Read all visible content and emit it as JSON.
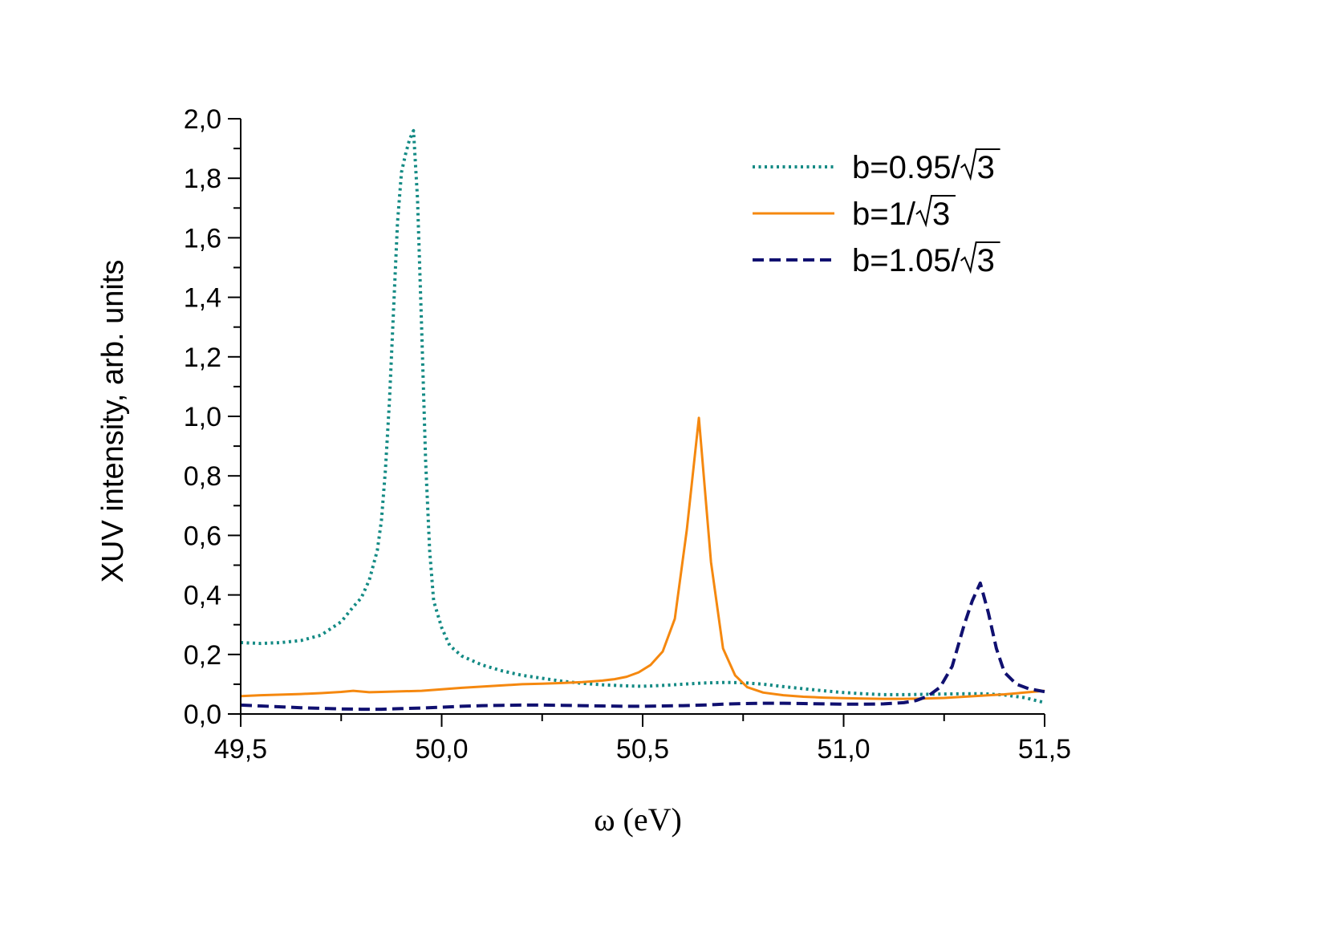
{
  "chart_data": {
    "type": "line",
    "title": "",
    "xlabel": "ω (eV)",
    "ylabel": "XUV intensity, arb. units",
    "xlim": [
      49.5,
      51.5
    ],
    "ylim": [
      0.0,
      2.0
    ],
    "xticks": [
      49.5,
      50.0,
      50.5,
      51.0,
      51.5
    ],
    "xtick_labels": [
      "49,5",
      "50,0",
      "50,5",
      "51,0",
      "51,5"
    ],
    "yticks": [
      0.0,
      0.2,
      0.4,
      0.6,
      0.8,
      1.0,
      1.2,
      1.4,
      1.6,
      1.8,
      2.0
    ],
    "ytick_labels": [
      "0,0",
      "0,2",
      "0,4",
      "0,6",
      "0,8",
      "1,0",
      "1,2",
      "1,4",
      "1,6",
      "1,8",
      "2,0"
    ],
    "grid": false,
    "legend_position": "top-right",
    "series": [
      {
        "name": "b=0.95/√3",
        "label_prefix": "b=0.95/",
        "color": "#138a84",
        "style": "dotted",
        "x": [
          49.5,
          49.55,
          49.6,
          49.65,
          49.7,
          49.75,
          49.78,
          49.8,
          49.82,
          49.84,
          49.85,
          49.86,
          49.87,
          49.88,
          49.89,
          49.9,
          49.91,
          49.92,
          49.93,
          49.94,
          49.95,
          49.96,
          49.97,
          49.98,
          50.0,
          50.02,
          50.05,
          50.1,
          50.15,
          50.2,
          50.25,
          50.3,
          50.35,
          50.4,
          50.45,
          50.5,
          50.55,
          50.6,
          50.65,
          50.7,
          50.75,
          50.8,
          50.85,
          50.9,
          50.95,
          51.0,
          51.05,
          51.1,
          51.15,
          51.2,
          51.25,
          51.3,
          51.35,
          51.4,
          51.45,
          51.5
        ],
        "y": [
          0.24,
          0.237,
          0.24,
          0.247,
          0.265,
          0.31,
          0.36,
          0.39,
          0.45,
          0.55,
          0.65,
          0.82,
          1.05,
          1.35,
          1.65,
          1.82,
          1.88,
          1.93,
          1.96,
          1.73,
          1.3,
          0.85,
          0.55,
          0.38,
          0.29,
          0.23,
          0.195,
          0.165,
          0.145,
          0.13,
          0.12,
          0.11,
          0.103,
          0.098,
          0.095,
          0.093,
          0.096,
          0.1,
          0.104,
          0.106,
          0.105,
          0.1,
          0.092,
          0.085,
          0.078,
          0.072,
          0.068,
          0.065,
          0.065,
          0.066,
          0.067,
          0.068,
          0.068,
          0.064,
          0.055,
          0.038
        ]
      },
      {
        "name": "b=1/√3",
        "label_prefix": "b=1/",
        "color": "#f5880f",
        "style": "solid",
        "x": [
          49.5,
          49.55,
          49.6,
          49.65,
          49.7,
          49.75,
          49.78,
          49.82,
          49.85,
          49.9,
          49.95,
          50.0,
          50.05,
          50.1,
          50.15,
          50.2,
          50.25,
          50.3,
          50.35,
          50.4,
          50.43,
          50.46,
          50.49,
          50.52,
          50.55,
          50.58,
          50.61,
          50.64,
          50.67,
          50.7,
          50.73,
          50.76,
          50.8,
          50.85,
          50.9,
          50.95,
          51.0,
          51.05,
          51.1,
          51.15,
          51.2,
          51.25,
          51.3,
          51.35,
          51.4,
          51.45,
          51.5
        ],
        "y": [
          0.06,
          0.063,
          0.065,
          0.067,
          0.07,
          0.074,
          0.078,
          0.073,
          0.074,
          0.076,
          0.078,
          0.083,
          0.088,
          0.092,
          0.096,
          0.1,
          0.102,
          0.104,
          0.107,
          0.112,
          0.117,
          0.125,
          0.14,
          0.165,
          0.21,
          0.32,
          0.62,
          0.995,
          0.51,
          0.22,
          0.13,
          0.09,
          0.072,
          0.063,
          0.058,
          0.055,
          0.053,
          0.052,
          0.051,
          0.051,
          0.052,
          0.054,
          0.058,
          0.062,
          0.066,
          0.072,
          0.078
        ]
      },
      {
        "name": "b=1.05/√3",
        "label_prefix": "b=1.05/",
        "color": "#101070",
        "style": "dashed",
        "x": [
          49.5,
          49.55,
          49.6,
          49.65,
          49.7,
          49.75,
          49.8,
          49.85,
          49.9,
          49.95,
          50.0,
          50.05,
          50.1,
          50.15,
          50.2,
          50.25,
          50.3,
          50.35,
          50.4,
          50.45,
          50.5,
          50.55,
          50.6,
          50.65,
          50.7,
          50.75,
          50.8,
          50.85,
          50.9,
          50.95,
          51.0,
          51.05,
          51.1,
          51.15,
          51.18,
          51.21,
          51.24,
          51.27,
          51.3,
          51.32,
          51.34,
          51.36,
          51.38,
          51.4,
          51.43,
          51.46,
          51.5
        ],
        "y": [
          0.03,
          0.027,
          0.024,
          0.021,
          0.019,
          0.017,
          0.016,
          0.016,
          0.018,
          0.02,
          0.023,
          0.026,
          0.028,
          0.029,
          0.03,
          0.03,
          0.029,
          0.028,
          0.027,
          0.026,
          0.026,
          0.027,
          0.028,
          0.03,
          0.033,
          0.035,
          0.036,
          0.036,
          0.035,
          0.034,
          0.033,
          0.033,
          0.034,
          0.038,
          0.045,
          0.06,
          0.09,
          0.16,
          0.3,
          0.38,
          0.44,
          0.34,
          0.22,
          0.14,
          0.1,
          0.085,
          0.075
        ]
      }
    ]
  }
}
